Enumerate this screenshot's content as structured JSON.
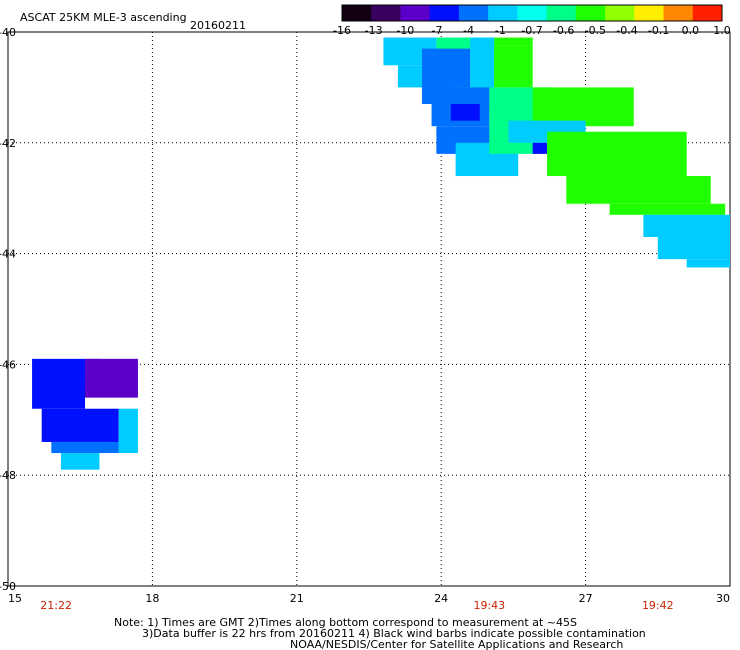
{
  "title": "ASCAT 25KM MLE-3 ascending",
  "date": "20160211",
  "colorbar": {
    "labels": [
      "-16",
      "-13",
      "-10",
      "-7",
      "-4",
      "-1",
      "-0.7",
      "-0.6",
      "-0.5",
      "-0.4",
      "-0.1",
      "0.0",
      "1.0"
    ],
    "colors": [
      "#120012",
      "#3a0060",
      "#5a00c8",
      "#0010ff",
      "#0070ff",
      "#00ccff",
      "#00ffee",
      "#00ff88",
      "#20ff00",
      "#90ff00",
      "#ffee00",
      "#ff8800",
      "#ff2000"
    ]
  },
  "chart_data": {
    "type": "heatmap",
    "xlim": [
      15,
      30
    ],
    "ylim": [
      -50,
      -40
    ],
    "x_ticks": [
      "15",
      "18",
      "21",
      "24",
      "27",
      "30"
    ],
    "y_ticks": [
      "-40",
      "-42",
      "-44",
      "-46",
      "-48",
      "-50"
    ],
    "time_labels": [
      {
        "x": 16,
        "text": "21:22"
      },
      {
        "x": 25,
        "text": "19:43"
      },
      {
        "x": 28.5,
        "text": "19:42"
      }
    ],
    "grid": true,
    "swaths": [
      {
        "region": "north-east",
        "lon_range": [
          22.8,
          30
        ],
        "lat_range": [
          -44.2,
          -40
        ],
        "dominant_values": [
          "-4",
          "-1",
          "-0.6",
          "-0.5"
        ]
      },
      {
        "region": "south-west",
        "lon_range": [
          15.5,
          17.7
        ],
        "lat_range": [
          -47.9,
          -45.9
        ],
        "dominant_values": [
          "-10",
          "-7",
          "-1"
        ]
      }
    ]
  },
  "note": {
    "line1": "Note: 1) Times are GMT 2)Times along bottom correspond to measurement at ~45S",
    "line2": "3)Data buffer is 22 hrs from 20160211 4) Black wind barbs indicate possible contamination",
    "line3": "NOAA/NESDIS/Center for Satellite Applications and Research"
  }
}
